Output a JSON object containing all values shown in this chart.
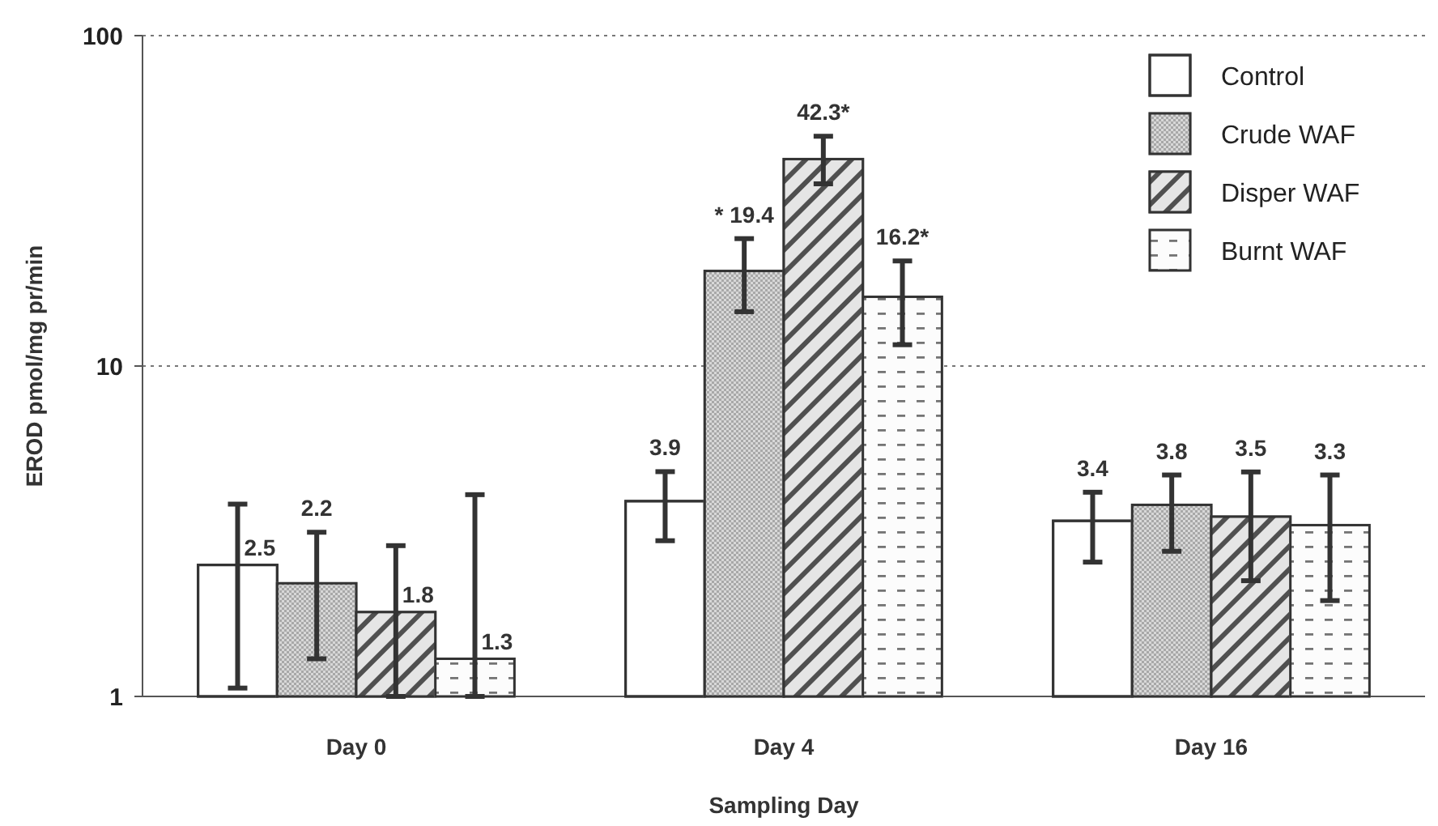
{
  "chart_data": {
    "type": "bar",
    "xlabel": "Sampling Day",
    "ylabel": "EROD pmol/mg pr/min",
    "categories": [
      "Day 0",
      "Day 4",
      "Day 16"
    ],
    "series": [
      {
        "name": "Control",
        "color": "#ffffff",
        "values": [
          2.5,
          3.9,
          3.4
        ],
        "errors": [
          [
            1.06,
            3.82
          ],
          [
            2.96,
            4.79
          ],
          [
            2.55,
            4.15
          ]
        ],
        "value_labels": [
          "2.5",
          "3.9",
          "3.4"
        ]
      },
      {
        "name": "Crude WAF",
        "color": "#a8a8a8",
        "values": [
          2.2,
          19.4,
          3.8
        ],
        "errors": [
          [
            1.3,
            3.14
          ],
          [
            14.6,
            24.3
          ],
          [
            2.75,
            4.68
          ]
        ],
        "value_labels": [
          "2.2",
          "* 19.4",
          "3.8"
        ]
      },
      {
        "name": "Disper WAF",
        "color": "#505050",
        "values": [
          1.8,
          42.3,
          3.5
        ],
        "errors": [
          [
            1.0,
            2.86
          ],
          [
            35.6,
            49.6
          ],
          [
            2.24,
            4.78
          ]
        ],
        "value_labels": [
          "1.8",
          "42.3*",
          "3.5"
        ]
      },
      {
        "name": "Burnt WAF",
        "color": "#e8e8e8",
        "values": [
          1.3,
          16.2,
          3.3
        ],
        "errors": [
          [
            1.0,
            4.08
          ],
          [
            11.6,
            20.8
          ],
          [
            1.95,
            4.68
          ]
        ],
        "value_labels": [
          "1.3",
          "16.2*",
          "3.3"
        ]
      }
    ],
    "log": true,
    "ylim": [
      1,
      100
    ],
    "yticks": [
      1,
      10,
      100
    ],
    "grid": "y",
    "legend": "top right"
  }
}
